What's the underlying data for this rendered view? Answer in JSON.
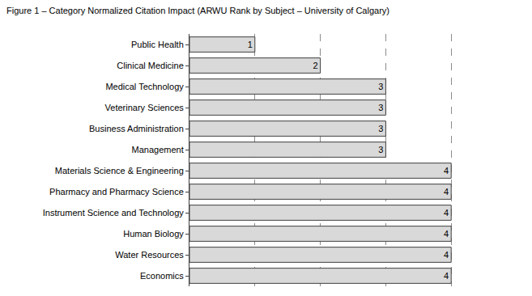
{
  "chart_data": {
    "type": "bar",
    "title": "Figure 1 – Category Normalized Citation Impact (ARWU Rank by Subject – University of Calgary)",
    "orientation": "horizontal",
    "categories": [
      "Public Health",
      "Clinical Medicine",
      "Medical Technology",
      "Veterinary Sciences",
      "Business Administration",
      "Management",
      "Materials Science & Engineering",
      "Pharmacy and Pharmacy Science",
      "Instrument Science and Technology",
      "Human Biology",
      "Water Resources",
      "Economics"
    ],
    "values": [
      1,
      2,
      3,
      3,
      3,
      3,
      4,
      4,
      4,
      4,
      4,
      4
    ],
    "color": "#d9d9d9",
    "xlim": [
      0,
      5
    ],
    "xticks": [
      0,
      1,
      2,
      3,
      4,
      5
    ],
    "grid": true,
    "data_labels": true,
    "tick_labels": "y"
  }
}
